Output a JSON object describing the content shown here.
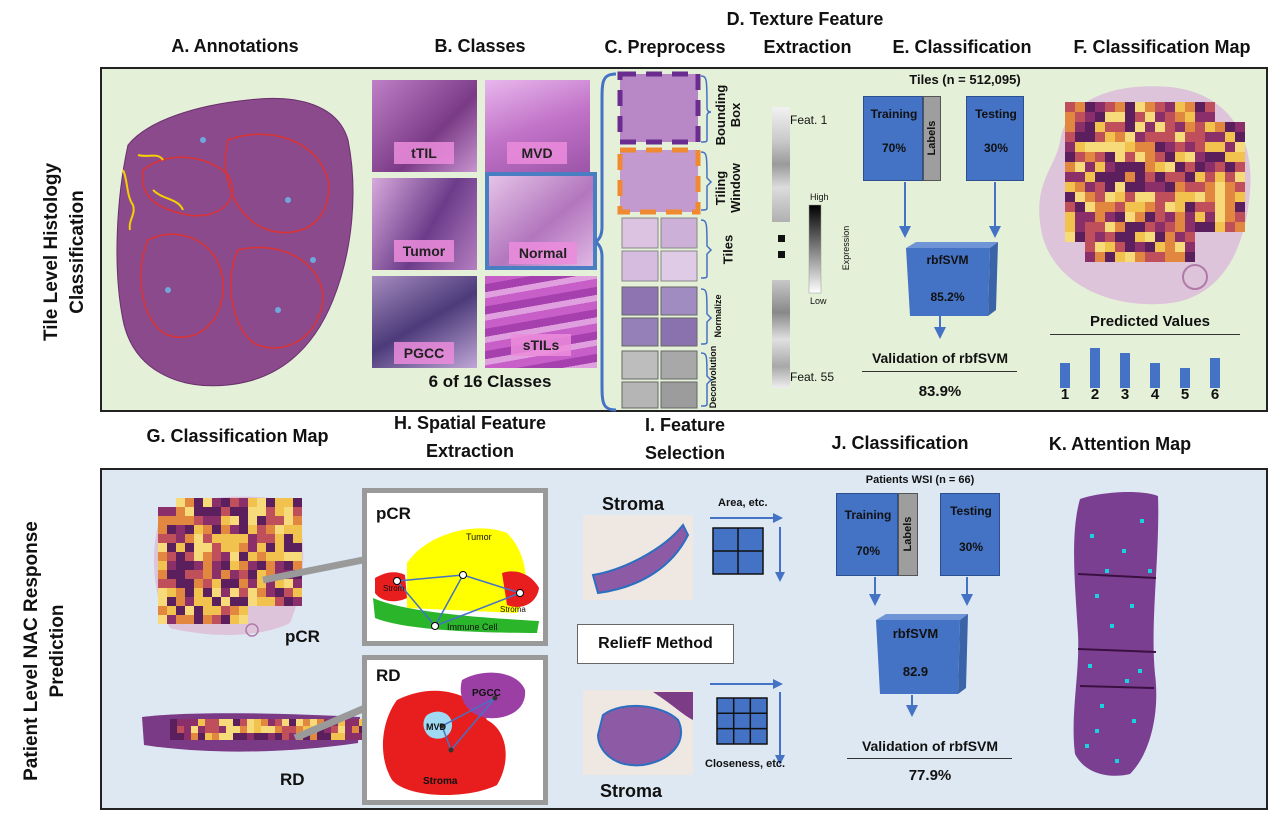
{
  "top_titles": {
    "a": "A. Annotations",
    "b": "B. Classes",
    "c": "C. Preprocess",
    "d_line1": "D. Texture Feature",
    "d_line2": "Extraction",
    "e": "E. Classification",
    "f": "F. Classification Map"
  },
  "bottom_titles": {
    "g": "G. Classification Map",
    "h_line1": "H. Spatial Feature",
    "h_line2": "Extraction",
    "i_line1": "I. Feature",
    "i_line2": "Selection",
    "j": "J. Classification",
    "k": "K. Attention Map"
  },
  "row_labels": {
    "top_line1": "Tile Level Histology",
    "top_line2": "Classification",
    "bottom_line1": "Patient Level NAC Response",
    "bottom_line2": "Prediction"
  },
  "classes": {
    "items": [
      "tTIL",
      "MVD",
      "Tumor",
      "Normal",
      "PGCC",
      "sTILs"
    ],
    "caption": "6 of 16 Classes"
  },
  "preprocess": {
    "steps": [
      "Bounding Box",
      "Tiling Window",
      "Tiles",
      "Normalize",
      "Deconvolution"
    ]
  },
  "texture": {
    "feat_first": "Feat. 1",
    "feat_last": "Feat. 55",
    "scale_high": "High",
    "scale_low": "Low",
    "scale_label": "Expression"
  },
  "classification_top": {
    "header": "Tiles (n = 512,095)",
    "training_label": "Training",
    "training_pct": "70%",
    "labels_bar": "Labels",
    "testing_label": "Testing",
    "testing_pct": "30%",
    "model_name": "rbfSVM",
    "model_score": "85.2%",
    "validation_label": "Validation of rbfSVM",
    "validation_score": "83.9%"
  },
  "predicted": {
    "title": "Predicted Values",
    "categories": [
      "1",
      "2",
      "3",
      "4",
      "5",
      "6"
    ],
    "values": [
      0.5,
      0.8,
      0.7,
      0.5,
      0.4,
      0.6
    ]
  },
  "bottom_map": {
    "pcr_label": "pCR",
    "rd_label": "RD"
  },
  "spatial": {
    "pcr_title": "pCR",
    "pcr_tumor": "Tumor",
    "pcr_stroma_left": "Strom",
    "pcr_stroma_right": "Stroma",
    "pcr_immune": "Immune Cell",
    "rd_title": "RD",
    "rd_pgcc": "PGCC",
    "rd_mvd": "MVD",
    "rd_stroma": "Stroma"
  },
  "feature_selection": {
    "stroma_top": "Stroma",
    "stroma_bottom": "Stroma",
    "area_label": "Area, etc.",
    "closeness_label": "Closeness, etc.",
    "method_label": "ReliefF Method"
  },
  "classification_bottom": {
    "header": "Patients WSI (n = 66)",
    "training_label": "Training",
    "training_pct": "70%",
    "labels_bar": "Labels",
    "testing_label": "Testing",
    "testing_pct": "30%",
    "model_name": "rbfSVM",
    "model_score": "82.9",
    "validation_label": "Validation of rbfSVM",
    "validation_score": "77.9%"
  },
  "colors": {
    "top_panel_bg": "#e4f0d8",
    "bottom_panel_bg": "#dde8f3",
    "box_blue": "#4472c4",
    "tissue_purple": "#8a4a8c",
    "heat_dark": "#5b1f5e",
    "heat_light": "#f2c24f"
  }
}
